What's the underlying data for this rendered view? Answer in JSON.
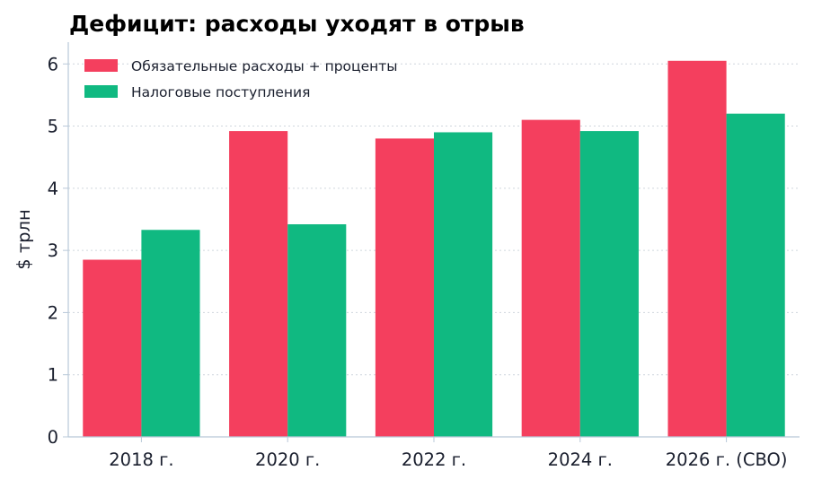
{
  "colors": {
    "spending": "#f43f5e",
    "revenue": "#10b981",
    "axis": "#b8c8d8",
    "grid": "#cfd6dd",
    "text": "#1a1f2e"
  },
  "chart_data": {
    "type": "bar",
    "title": "Дефицит: расходы уходят в отрыв",
    "xlabel": "",
    "ylabel": "$ трлн",
    "categories": [
      "2018 г.",
      "2020 г.",
      "2022 г.",
      "2024 г.",
      "2026 г. (CBO)"
    ],
    "series": [
      {
        "name": "Обязательные расходы + проценты",
        "color": "#f43f5e",
        "values": [
          2.85,
          4.92,
          4.8,
          5.1,
          6.05
        ]
      },
      {
        "name": "Налоговые поступления",
        "color": "#10b981",
        "values": [
          3.33,
          3.42,
          4.9,
          4.92,
          5.2
        ]
      }
    ],
    "ylim": [
      0,
      6.35
    ],
    "yticks": [
      0,
      1,
      2,
      3,
      4,
      5,
      6
    ],
    "grid": true,
    "grid_axis": "y",
    "legend_position": "top-left"
  }
}
